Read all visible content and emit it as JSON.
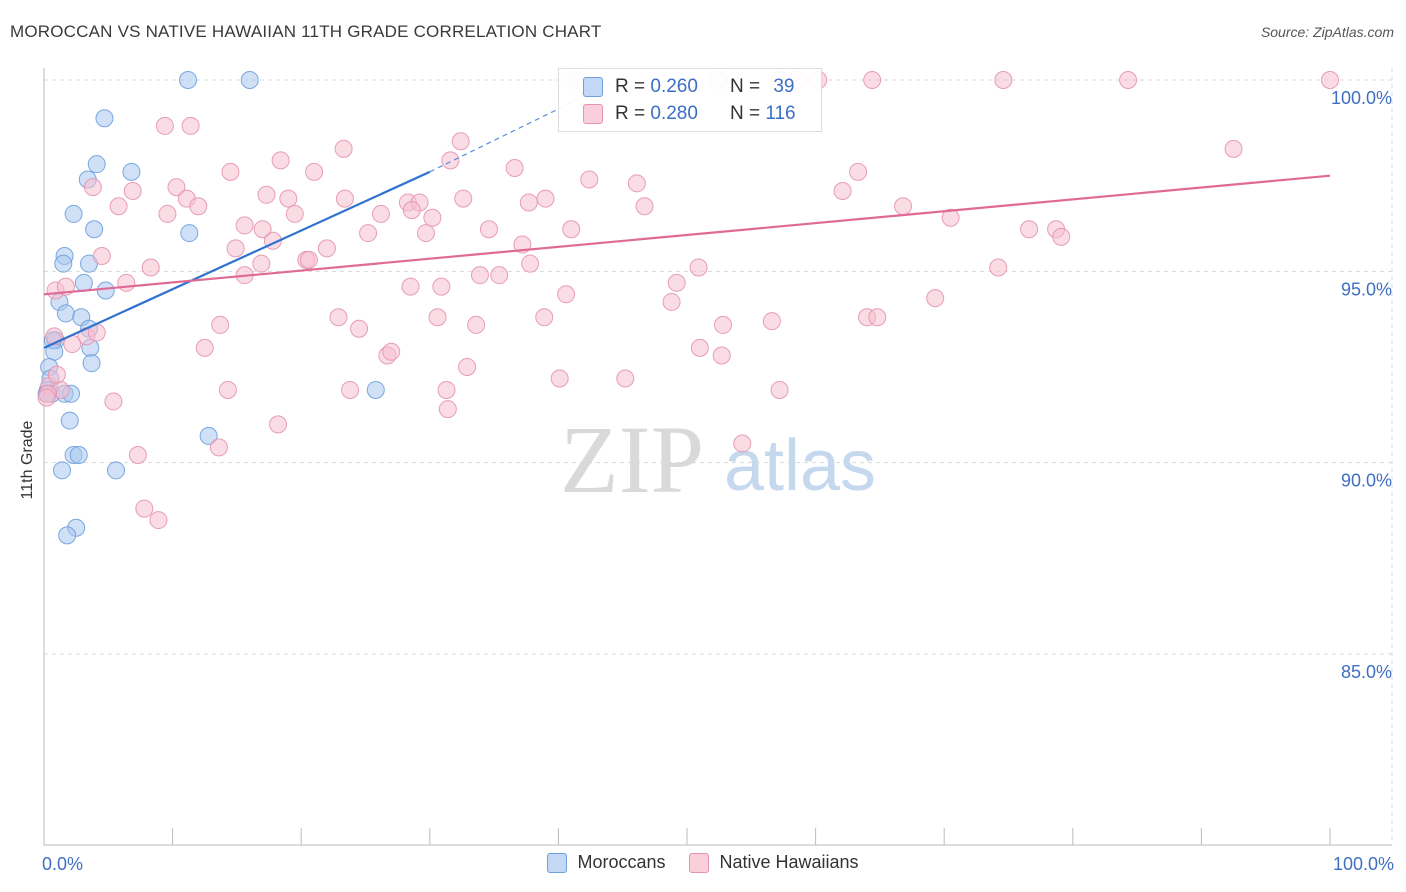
{
  "header": {
    "title": "MOROCCAN VS NATIVE HAWAIIAN 11TH GRADE CORRELATION CHART",
    "source": "Source: ZipAtlas.com"
  },
  "watermark": {
    "zip": "ZIP",
    "atlas": "atlas"
  },
  "colors": {
    "blue_fill": "#aac8f0",
    "blue_stroke": "#6d9fdd",
    "blue_line": "#2f72d0",
    "pink_fill": "#f6bfd0",
    "pink_stroke": "#e693b0",
    "pink_line": "#e06a96",
    "axis_label": "#3f6fc2",
    "grid": "#d9d9d9"
  },
  "legend_top": {
    "rows": [
      {
        "r_label": "R =",
        "r_value": "0.260",
        "n_label": "N =",
        "n_value": "39",
        "series": "blue"
      },
      {
        "r_label": "R =",
        "r_value": "0.280",
        "n_label": "N =",
        "n_value": "116",
        "series": "pink"
      }
    ]
  },
  "legend_bottom": {
    "items": [
      {
        "label": "Moroccans",
        "series": "blue"
      },
      {
        "label": "Native Hawaiians",
        "series": "pink"
      }
    ]
  },
  "chart_data": {
    "type": "scatter",
    "title": "MOROCCAN VS NATIVE HAWAIIAN 11TH GRADE CORRELATION CHART",
    "xlabel": "",
    "ylabel": "11th Grade",
    "xlim": [
      0,
      100
    ],
    "ylim": [
      80.5,
      100.5
    ],
    "x_tick_labels": [
      {
        "value": 0,
        "label": "0.0%"
      },
      {
        "value": 100,
        "label": "100.0%"
      }
    ],
    "x_minor_ticks": [
      0,
      10,
      20,
      30,
      40,
      50,
      60,
      70,
      80,
      90,
      100
    ],
    "y_ticks": [
      {
        "value": 100,
        "label": "100.0%"
      },
      {
        "value": 95,
        "label": "95.0%"
      },
      {
        "value": 90,
        "label": "90.0%"
      },
      {
        "value": 85,
        "label": "85.0%"
      }
    ],
    "grid": true,
    "legend_position": "top-center",
    "series": [
      {
        "name": "Moroccans",
        "color": "blue",
        "points": [
          [
            11.2,
            100.0
          ],
          [
            16.0,
            100.0
          ],
          [
            4.7,
            99.0
          ],
          [
            4.1,
            97.8
          ],
          [
            6.8,
            97.6
          ],
          [
            3.4,
            97.4
          ],
          [
            2.3,
            96.5
          ],
          [
            3.9,
            96.1
          ],
          [
            11.3,
            96.0
          ],
          [
            1.6,
            95.4
          ],
          [
            3.5,
            95.2
          ],
          [
            1.5,
            95.2
          ],
          [
            3.1,
            94.7
          ],
          [
            4.8,
            94.5
          ],
          [
            1.2,
            94.2
          ],
          [
            1.7,
            93.9
          ],
          [
            2.9,
            93.8
          ],
          [
            3.5,
            93.5
          ],
          [
            0.9,
            93.2
          ],
          [
            0.7,
            93.2
          ],
          [
            3.6,
            93.0
          ],
          [
            0.8,
            92.9
          ],
          [
            3.7,
            92.6
          ],
          [
            0.4,
            92.5
          ],
          [
            0.5,
            92.2
          ],
          [
            0.3,
            91.9
          ],
          [
            0.6,
            91.8
          ],
          [
            1.6,
            91.8
          ],
          [
            2.1,
            91.8
          ],
          [
            25.8,
            91.9
          ],
          [
            2.0,
            91.1
          ],
          [
            12.8,
            90.7
          ],
          [
            2.3,
            90.2
          ],
          [
            2.7,
            90.2
          ],
          [
            1.4,
            89.8
          ],
          [
            5.6,
            89.8
          ],
          [
            2.5,
            88.3
          ],
          [
            1.8,
            88.1
          ],
          [
            0.2,
            91.8
          ]
        ],
        "trend_solid": [
          [
            0.0,
            93.0
          ],
          [
            30.0,
            97.6
          ]
        ],
        "trend_dashed": [
          [
            30.0,
            97.6
          ],
          [
            44.0,
            99.9
          ]
        ]
      },
      {
        "name": "Native Hawaiians",
        "color": "pink",
        "points": [
          [
            41.4,
            100.0
          ],
          [
            52.5,
            100.0
          ],
          [
            57.2,
            100.0
          ],
          [
            58.6,
            100.0
          ],
          [
            60.2,
            100.0
          ],
          [
            64.4,
            100.0
          ],
          [
            74.6,
            100.0
          ],
          [
            84.3,
            100.0
          ],
          [
            100.0,
            100.0
          ],
          [
            9.4,
            98.8
          ],
          [
            11.4,
            98.8
          ],
          [
            32.4,
            98.4
          ],
          [
            23.3,
            98.2
          ],
          [
            92.5,
            98.2
          ],
          [
            18.4,
            97.9
          ],
          [
            31.6,
            97.9
          ],
          [
            36.6,
            97.7
          ],
          [
            14.5,
            97.6
          ],
          [
            21.0,
            97.6
          ],
          [
            63.3,
            97.6
          ],
          [
            42.4,
            97.4
          ],
          [
            46.1,
            97.3
          ],
          [
            3.8,
            97.2
          ],
          [
            10.3,
            97.2
          ],
          [
            6.9,
            97.1
          ],
          [
            62.1,
            97.1
          ],
          [
            17.3,
            97.0
          ],
          [
            11.1,
            96.9
          ],
          [
            19.0,
            96.9
          ],
          [
            23.4,
            96.9
          ],
          [
            32.6,
            96.9
          ],
          [
            39.0,
            96.9
          ],
          [
            28.3,
            96.8
          ],
          [
            29.2,
            96.8
          ],
          [
            37.7,
            96.8
          ],
          [
            5.8,
            96.7
          ],
          [
            12.0,
            96.7
          ],
          [
            46.7,
            96.7
          ],
          [
            66.8,
            96.7
          ],
          [
            19.5,
            96.5
          ],
          [
            26.2,
            96.5
          ],
          [
            28.6,
            96.6
          ],
          [
            9.6,
            96.5
          ],
          [
            30.2,
            96.4
          ],
          [
            70.5,
            96.4
          ],
          [
            15.6,
            96.2
          ],
          [
            17.0,
            96.1
          ],
          [
            29.7,
            96.0
          ],
          [
            34.6,
            96.1
          ],
          [
            41.0,
            96.1
          ],
          [
            76.6,
            96.1
          ],
          [
            78.7,
            96.1
          ],
          [
            25.2,
            96.0
          ],
          [
            79.1,
            95.9
          ],
          [
            17.8,
            95.8
          ],
          [
            14.9,
            95.6
          ],
          [
            22.0,
            95.6
          ],
          [
            37.2,
            95.7
          ],
          [
            4.5,
            95.4
          ],
          [
            20.4,
            95.3
          ],
          [
            16.9,
            95.2
          ],
          [
            37.8,
            95.2
          ],
          [
            8.3,
            95.1
          ],
          [
            50.9,
            95.1
          ],
          [
            74.2,
            95.1
          ],
          [
            15.6,
            94.9
          ],
          [
            33.9,
            94.9
          ],
          [
            35.4,
            94.9
          ],
          [
            6.4,
            94.7
          ],
          [
            28.5,
            94.6
          ],
          [
            0.9,
            94.5
          ],
          [
            1.7,
            94.6
          ],
          [
            30.9,
            94.6
          ],
          [
            49.2,
            94.7
          ],
          [
            40.6,
            94.4
          ],
          [
            48.8,
            94.2
          ],
          [
            69.3,
            94.3
          ],
          [
            13.7,
            93.6
          ],
          [
            22.9,
            93.8
          ],
          [
            30.6,
            93.8
          ],
          [
            38.9,
            93.8
          ],
          [
            56.6,
            93.7
          ],
          [
            64.0,
            93.8
          ],
          [
            64.8,
            93.8
          ],
          [
            24.5,
            93.5
          ],
          [
            33.6,
            93.6
          ],
          [
            52.8,
            93.6
          ],
          [
            0.8,
            93.3
          ],
          [
            3.3,
            93.3
          ],
          [
            12.5,
            93.0
          ],
          [
            51.0,
            93.0
          ],
          [
            2.2,
            93.1
          ],
          [
            26.7,
            92.8
          ],
          [
            52.7,
            92.8
          ],
          [
            32.9,
            92.5
          ],
          [
            0.4,
            92.0
          ],
          [
            1.3,
            91.9
          ],
          [
            14.3,
            91.9
          ],
          [
            23.8,
            91.9
          ],
          [
            31.3,
            91.9
          ],
          [
            40.1,
            92.2
          ],
          [
            57.2,
            91.9
          ],
          [
            45.2,
            92.2
          ],
          [
            0.3,
            91.8
          ],
          [
            5.4,
            91.6
          ],
          [
            31.4,
            91.4
          ],
          [
            18.2,
            91.0
          ],
          [
            13.6,
            90.4
          ],
          [
            54.3,
            90.5
          ],
          [
            7.3,
            90.2
          ],
          [
            7.8,
            88.8
          ],
          [
            8.9,
            88.5
          ],
          [
            0.2,
            91.7
          ],
          [
            1.0,
            92.3
          ],
          [
            4.1,
            93.4
          ],
          [
            20.6,
            95.3
          ],
          [
            27.0,
            92.9
          ]
        ],
        "trend_solid": [
          [
            0.0,
            94.4
          ],
          [
            100.0,
            97.5
          ]
        ]
      }
    ]
  }
}
